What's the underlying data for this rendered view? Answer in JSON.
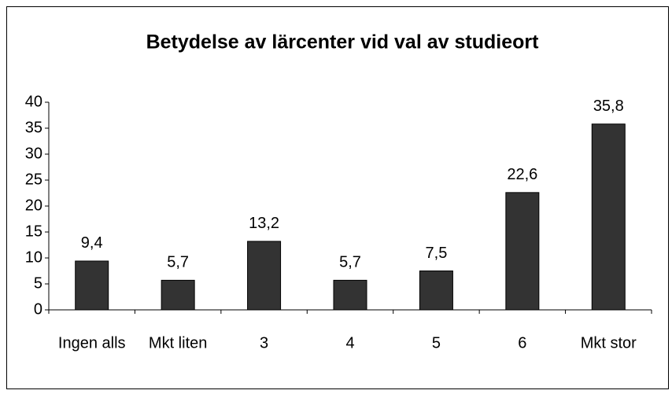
{
  "chart_data": {
    "type": "bar",
    "title": "Betydelse av lärcenter vid val av studieort",
    "categories": [
      "Ingen alls",
      "Mkt liten",
      "3",
      "4",
      "5",
      "6",
      "Mkt stor"
    ],
    "values": [
      9.4,
      5.7,
      13.2,
      5.7,
      7.5,
      22.6,
      35.8
    ],
    "value_labels": [
      "9,4",
      "5,7",
      "13,2",
      "5,7",
      "7,5",
      "22,6",
      "35,8"
    ],
    "color": "#333333",
    "ylim": [
      0,
      40
    ],
    "yticks": [
      0,
      5,
      10,
      15,
      20,
      25,
      30,
      35,
      40
    ],
    "grid": false
  }
}
